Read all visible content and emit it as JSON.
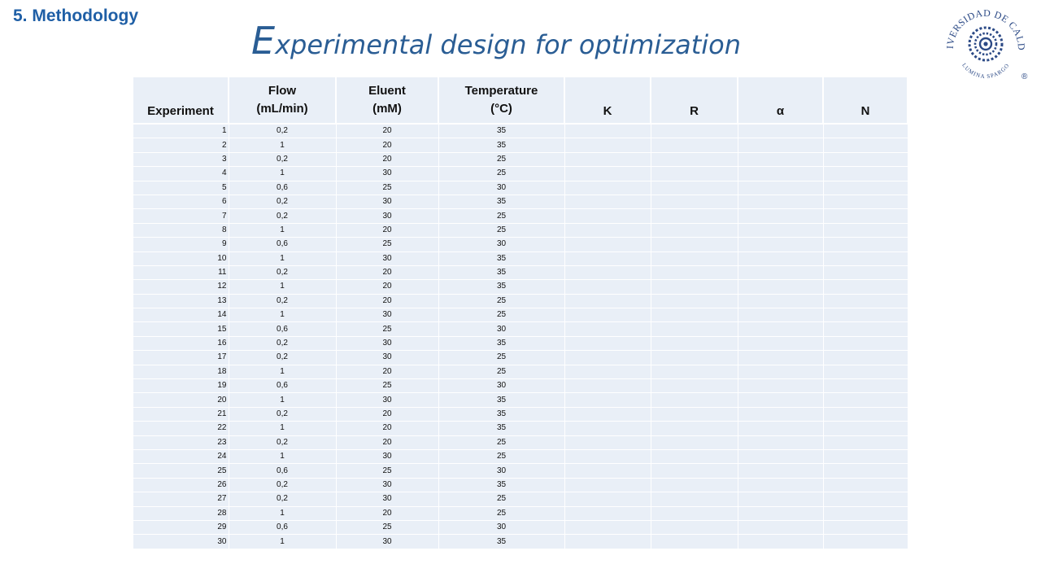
{
  "section_label": "5. Methodology",
  "title": {
    "initial": "E",
    "rest": "xperimental design for optimization"
  },
  "logo": {
    "text_top": "UNIVERSIDAD DE CALDAS",
    "text_bottom": "LUMINA SPARGO",
    "mark": "®",
    "color": "#2c4a86"
  },
  "table": {
    "headers": {
      "experiment": "Experiment",
      "flow_1": "Flow",
      "flow_2": "(mL/min)",
      "eluent_1": "Eluent",
      "eluent_2": "(mM)",
      "temp_1": "Temperature",
      "temp_2": "(°C)",
      "k": "K",
      "r": "R",
      "alpha": "α",
      "n": "N"
    },
    "rows": [
      [
        "1",
        "0,2",
        "20",
        "35"
      ],
      [
        "2",
        "1",
        "20",
        "35"
      ],
      [
        "3",
        "0,2",
        "20",
        "25"
      ],
      [
        "4",
        "1",
        "30",
        "25"
      ],
      [
        "5",
        "0,6",
        "25",
        "30"
      ],
      [
        "6",
        "0,2",
        "30",
        "35"
      ],
      [
        "7",
        "0,2",
        "30",
        "25"
      ],
      [
        "8",
        "1",
        "20",
        "25"
      ],
      [
        "9",
        "0,6",
        "25",
        "30"
      ],
      [
        "10",
        "1",
        "30",
        "35"
      ],
      [
        "11",
        "0,2",
        "20",
        "35"
      ],
      [
        "12",
        "1",
        "20",
        "35"
      ],
      [
        "13",
        "0,2",
        "20",
        "25"
      ],
      [
        "14",
        "1",
        "30",
        "25"
      ],
      [
        "15",
        "0,6",
        "25",
        "30"
      ],
      [
        "16",
        "0,2",
        "30",
        "35"
      ],
      [
        "17",
        "0,2",
        "30",
        "25"
      ],
      [
        "18",
        "1",
        "20",
        "25"
      ],
      [
        "19",
        "0,6",
        "25",
        "30"
      ],
      [
        "20",
        "1",
        "30",
        "35"
      ],
      [
        "21",
        "0,2",
        "20",
        "35"
      ],
      [
        "22",
        "1",
        "20",
        "35"
      ],
      [
        "23",
        "0,2",
        "20",
        "25"
      ],
      [
        "24",
        "1",
        "30",
        "25"
      ],
      [
        "25",
        "0,6",
        "25",
        "30"
      ],
      [
        "26",
        "0,2",
        "30",
        "35"
      ],
      [
        "27",
        "0,2",
        "30",
        "25"
      ],
      [
        "28",
        "1",
        "20",
        "25"
      ],
      [
        "29",
        "0,6",
        "25",
        "30"
      ],
      [
        "30",
        "1",
        "30",
        "35"
      ]
    ],
    "colors": {
      "cell_bg": "#e9eff7",
      "border": "#ffffff"
    }
  }
}
